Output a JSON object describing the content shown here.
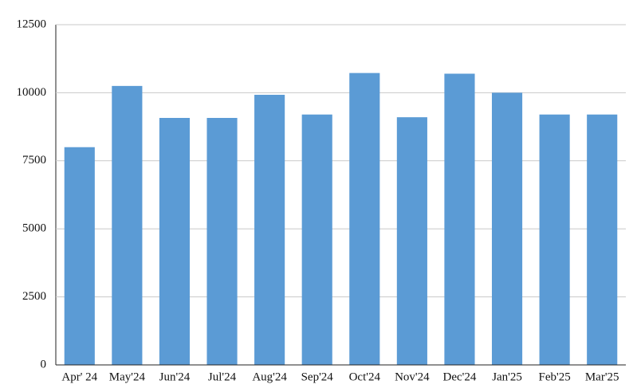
{
  "chart_data": {
    "type": "bar",
    "categories": [
      "Apr' 24",
      "May'24",
      "Jun'24",
      "Jul'24",
      "Aug'24",
      "Sep'24",
      "Oct'24",
      "Nov'24",
      "Dec'24",
      "Jan'25",
      "Feb'25",
      "Mar'25"
    ],
    "values": [
      8000,
      10250,
      9075,
      9075,
      9925,
      9200,
      10725,
      9100,
      10700,
      10000,
      9200,
      9200
    ],
    "color": "#5b9bd5",
    "ylim": [
      0,
      12500
    ],
    "yticks": [
      0,
      2500,
      5000,
      7500,
      10000,
      12500
    ],
    "grid": true
  }
}
